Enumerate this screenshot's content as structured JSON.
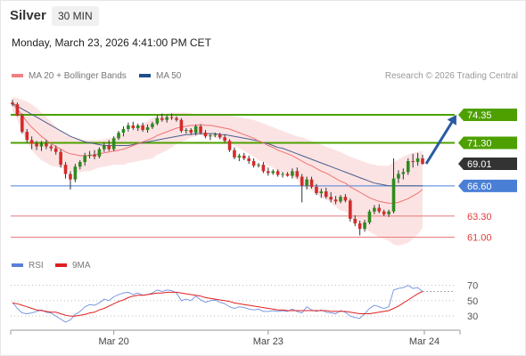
{
  "header": {
    "title": "Silver",
    "interval": "30 MIN",
    "datetime": "Monday, March 23, 2026 4:41:00 PM CET",
    "copyright": "Research © 2026 Trading Central"
  },
  "legend": {
    "items": [
      {
        "label": "MA 20 + Bollinger Bands",
        "color": "#f08080"
      },
      {
        "label": "MA 50",
        "color": "#1f4e8c"
      }
    ]
  },
  "rsi_legend": {
    "items": [
      {
        "label": "RSI",
        "color": "#5b7fd6"
      },
      {
        "label": "9MA",
        "color": "#e02020"
      }
    ]
  },
  "chart_data": [
    {
      "type": "candlestick",
      "x_axis": {
        "ticks": [
          "Mar 20",
          "Mar 23",
          "Mar 24"
        ]
      },
      "y_range": [
        59.2,
        76.2
      ],
      "levels": [
        {
          "value": 74.35,
          "label": "74.35",
          "kind": "resistance",
          "color": "#4da000"
        },
        {
          "value": 71.3,
          "label": "71.30",
          "kind": "resistance",
          "color": "#4da000"
        },
        {
          "value": 69.01,
          "label": "69.01",
          "kind": "last-price",
          "color": "#333333"
        },
        {
          "value": 66.6,
          "label": "66.60",
          "kind": "pivot",
          "color": "#4a7fd6"
        },
        {
          "value": 63.3,
          "label": "63.30",
          "kind": "support",
          "color": "#e87a7a"
        },
        {
          "value": 61.0,
          "label": "61.00",
          "kind": "support",
          "color": "#e87a7a"
        }
      ],
      "target_arrow": {
        "from": 69.01,
        "to": 74.35,
        "color": "#2a5aa0"
      },
      "ohlc": [
        [
          75.7,
          76.0,
          75.3,
          75.5
        ],
        [
          75.5,
          75.7,
          74.2,
          74.3
        ],
        [
          74.3,
          74.5,
          72.3,
          72.5
        ],
        [
          72.5,
          72.8,
          71.3,
          71.6
        ],
        [
          71.6,
          72.0,
          70.6,
          71.2
        ],
        [
          71.2,
          71.5,
          70.5,
          70.9
        ],
        [
          70.9,
          71.5,
          70.4,
          71.2
        ],
        [
          71.2,
          71.6,
          70.6,
          70.9
        ],
        [
          70.9,
          71.1,
          70.4,
          70.7
        ],
        [
          70.7,
          71.0,
          70.0,
          70.3
        ],
        [
          70.3,
          70.6,
          68.6,
          68.9
        ],
        [
          68.9,
          69.2,
          67.4,
          67.9
        ],
        [
          67.9,
          68.2,
          66.2,
          67.3
        ],
        [
          67.3,
          69.0,
          67.0,
          68.7
        ],
        [
          68.7,
          69.4,
          68.4,
          69.2
        ],
        [
          69.2,
          70.2,
          68.8,
          69.9
        ],
        [
          69.9,
          70.4,
          69.6,
          70.0
        ],
        [
          70.0,
          70.5,
          69.5,
          69.8
        ],
        [
          69.8,
          70.8,
          69.6,
          70.6
        ],
        [
          70.6,
          71.3,
          70.3,
          71.0
        ],
        [
          71.0,
          71.6,
          70.4,
          70.6
        ],
        [
          70.6,
          72.0,
          70.4,
          71.8
        ],
        [
          71.8,
          72.6,
          71.6,
          72.4
        ],
        [
          72.4,
          73.1,
          72.0,
          72.8
        ],
        [
          72.8,
          73.5,
          72.5,
          73.2
        ],
        [
          73.2,
          73.6,
          72.7,
          72.9
        ],
        [
          72.9,
          73.4,
          72.6,
          73.2
        ],
        [
          73.2,
          73.5,
          72.5,
          72.7
        ],
        [
          72.7,
          73.3,
          72.4,
          73.0
        ],
        [
          73.0,
          73.6,
          72.8,
          73.4
        ],
        [
          73.4,
          74.3,
          73.2,
          74.0
        ],
        [
          74.0,
          74.5,
          73.6,
          73.8
        ],
        [
          73.8,
          74.3,
          73.5,
          74.1
        ],
        [
          74.1,
          74.5,
          73.8,
          74.0
        ],
        [
          74.0,
          74.2,
          73.6,
          73.8
        ],
        [
          73.8,
          74.0,
          72.4,
          72.6
        ],
        [
          72.6,
          72.9,
          72.3,
          72.7
        ],
        [
          72.7,
          72.9,
          72.2,
          72.4
        ],
        [
          72.4,
          73.3,
          72.1,
          73.1
        ],
        [
          73.1,
          73.3,
          72.2,
          72.4
        ],
        [
          72.4,
          72.7,
          71.8,
          72.0
        ],
        [
          72.0,
          72.3,
          71.6,
          72.1
        ],
        [
          72.1,
          72.4,
          71.9,
          72.2
        ],
        [
          72.2,
          72.4,
          71.7,
          71.9
        ],
        [
          71.9,
          72.2,
          71.3,
          71.5
        ],
        [
          71.5,
          71.7,
          70.3,
          70.5
        ],
        [
          70.5,
          70.8,
          69.5,
          69.7
        ],
        [
          69.7,
          70.1,
          69.3,
          69.9
        ],
        [
          69.9,
          70.2,
          69.4,
          69.6
        ],
        [
          69.6,
          69.9,
          69.0,
          69.3
        ],
        [
          69.3,
          69.6,
          68.6,
          68.8
        ],
        [
          68.8,
          69.1,
          68.6,
          68.9
        ],
        [
          68.9,
          69.2,
          68.0,
          68.2
        ],
        [
          68.2,
          68.6,
          67.7,
          68.0
        ],
        [
          68.0,
          68.4,
          67.8,
          68.2
        ],
        [
          68.2,
          68.4,
          67.6,
          67.8
        ],
        [
          67.8,
          68.1,
          67.5,
          67.9
        ],
        [
          67.9,
          68.1,
          67.6,
          67.7
        ],
        [
          67.7,
          68.5,
          67.4,
          68.2
        ],
        [
          68.2,
          68.6,
          67.4,
          67.6
        ],
        [
          67.6,
          67.9,
          64.8,
          66.6
        ],
        [
          66.6,
          67.6,
          66.2,
          67.3
        ],
        [
          67.3,
          67.6,
          66.3,
          66.5
        ],
        [
          66.5,
          66.8,
          65.6,
          65.8
        ],
        [
          65.8,
          66.3,
          65.3,
          66.0
        ],
        [
          66.0,
          66.4,
          65.2,
          65.4
        ],
        [
          65.4,
          65.9,
          64.8,
          65.1
        ],
        [
          65.1,
          65.5,
          64.6,
          64.9
        ],
        [
          64.9,
          65.6,
          64.7,
          65.4
        ],
        [
          65.4,
          65.7,
          64.8,
          65.0
        ],
        [
          65.0,
          65.2,
          62.7,
          63.0
        ],
        [
          63.0,
          63.4,
          62.2,
          62.5
        ],
        [
          62.5,
          62.8,
          61.2,
          61.9
        ],
        [
          61.9,
          62.9,
          61.6,
          62.6
        ],
        [
          62.6,
          64.0,
          62.4,
          63.8
        ],
        [
          63.8,
          64.5,
          63.5,
          64.2
        ],
        [
          64.2,
          64.6,
          63.6,
          63.8
        ],
        [
          63.8,
          64.0,
          63.3,
          63.5
        ],
        [
          63.5,
          64.0,
          63.2,
          63.8
        ],
        [
          63.8,
          69.6,
          63.6,
          67.4
        ],
        [
          67.4,
          68.3,
          66.9,
          67.9
        ],
        [
          67.9,
          68.5,
          67.3,
          68.1
        ],
        [
          68.1,
          69.6,
          67.8,
          69.3
        ],
        [
          69.3,
          70.1,
          68.6,
          69.2
        ],
        [
          69.2,
          70.2,
          68.8,
          69.6
        ],
        [
          69.6,
          70.0,
          68.9,
          69.01
        ]
      ],
      "ma20": [
        75.5,
        75.0,
        74.3,
        73.6,
        73.0,
        72.5,
        72.0,
        71.6,
        71.2,
        70.9,
        70.6,
        70.3,
        70.1,
        70.0,
        69.9,
        69.9,
        69.9,
        70.0,
        70.1,
        70.2,
        70.3,
        70.4,
        70.5,
        70.6,
        70.8,
        71.0,
        71.2,
        71.4,
        71.6,
        71.8,
        72.1,
        72.3,
        72.5,
        72.7,
        72.9,
        73.0,
        73.1,
        73.2,
        73.2,
        73.3,
        73.2,
        73.2,
        73.1,
        73.0,
        72.9,
        72.8,
        72.6,
        72.4,
        72.2,
        72.0,
        71.8,
        71.5,
        71.3,
        71.0,
        70.8,
        70.5,
        70.3,
        70.1,
        69.9,
        69.6,
        69.3,
        69.0,
        68.8,
        68.5,
        68.2,
        68.0,
        67.7,
        67.4,
        67.1,
        66.9,
        66.5,
        66.2,
        65.9,
        65.6,
        65.3,
        65.1,
        64.9,
        64.8,
        64.7,
        64.7,
        64.8,
        65.0,
        65.2,
        65.5,
        65.8,
        66.2
      ],
      "bb_upper": [
        76.3,
        76.2,
        76.0,
        75.8,
        75.5,
        75.1,
        74.6,
        74.1,
        73.6,
        73.1,
        72.6,
        72.2,
        72.0,
        71.9,
        71.7,
        71.6,
        71.6,
        71.6,
        71.6,
        71.7,
        71.8,
        71.9,
        72.1,
        72.3,
        72.5,
        72.8,
        73.1,
        73.4,
        73.7,
        74.0,
        74.2,
        74.4,
        74.5,
        74.6,
        74.6,
        74.6,
        74.6,
        74.5,
        74.4,
        74.4,
        74.4,
        74.4,
        74.3,
        74.3,
        74.3,
        74.3,
        74.2,
        74.1,
        74.0,
        73.9,
        73.8,
        73.6,
        73.4,
        73.2,
        73.0,
        72.8,
        72.6,
        72.4,
        72.2,
        72.0,
        71.9,
        71.7,
        71.5,
        71.3,
        71.1,
        70.9,
        70.7,
        70.5,
        70.3,
        70.0,
        69.8,
        69.6,
        69.4,
        69.2,
        69.0,
        68.9,
        68.8,
        68.8,
        68.8,
        69.2,
        69.5,
        69.8,
        70.0,
        70.2,
        70.3,
        70.4
      ],
      "bb_lower": [
        74.7,
        73.8,
        72.6,
        71.4,
        70.5,
        69.9,
        69.4,
        69.1,
        68.8,
        68.7,
        68.6,
        68.4,
        68.2,
        68.1,
        68.1,
        68.2,
        68.2,
        68.4,
        68.6,
        68.7,
        68.8,
        68.9,
        68.9,
        68.9,
        69.1,
        69.2,
        69.3,
        69.4,
        69.5,
        69.6,
        70.0,
        70.2,
        70.5,
        70.8,
        71.2,
        71.4,
        71.6,
        71.9,
        72.0,
        72.2,
        72.0,
        72.0,
        71.9,
        71.7,
        71.5,
        71.3,
        71.0,
        70.7,
        70.4,
        70.1,
        69.8,
        69.4,
        69.2,
        68.8,
        68.6,
        68.2,
        68.0,
        67.8,
        67.6,
        67.2,
        66.7,
        66.3,
        66.1,
        65.7,
        65.3,
        65.1,
        64.7,
        64.3,
        63.9,
        63.8,
        63.2,
        62.8,
        62.4,
        62.0,
        61.6,
        61.3,
        61.0,
        60.8,
        60.6,
        60.2,
        60.1,
        60.2,
        60.4,
        60.8,
        61.3,
        62.0
      ],
      "ma50": [
        75.6,
        75.3,
        75.0,
        74.7,
        74.4,
        74.1,
        73.8,
        73.5,
        73.2,
        72.9,
        72.6,
        72.3,
        72.0,
        71.8,
        71.6,
        71.4,
        71.3,
        71.2,
        71.1,
        71.0,
        71.0,
        71.0,
        71.0,
        71.0,
        71.0,
        71.1,
        71.2,
        71.3,
        71.4,
        71.5,
        71.6,
        71.7,
        71.8,
        71.9,
        72.0,
        72.1,
        72.2,
        72.2,
        72.3,
        72.3,
        72.3,
        72.3,
        72.3,
        72.2,
        72.2,
        72.1,
        72.0,
        71.9,
        71.8,
        71.7,
        71.6,
        71.5,
        71.3,
        71.2,
        71.0,
        70.8,
        70.7,
        70.5,
        70.3,
        70.1,
        69.9,
        69.7,
        69.5,
        69.3,
        69.1,
        68.9,
        68.7,
        68.5,
        68.3,
        68.1,
        67.9,
        67.7,
        67.5,
        67.3,
        67.1,
        66.9,
        66.8,
        66.7,
        66.6,
        66.6,
        66.6,
        66.6,
        66.6,
        66.6,
        66.6,
        66.6
      ]
    },
    {
      "type": "line",
      "name": "RSI",
      "y_range": [
        15,
        80
      ],
      "y_ticks": [
        70,
        50,
        30
      ],
      "rsi": [
        48,
        40,
        34,
        33,
        34,
        36,
        38,
        35,
        34,
        30,
        26,
        22,
        25,
        32,
        36,
        42,
        45,
        44,
        47,
        52,
        50,
        55,
        58,
        60,
        61,
        58,
        60,
        57,
        58,
        60,
        64,
        62,
        64,
        63,
        60,
        50,
        52,
        50,
        56,
        51,
        48,
        50,
        51,
        48,
        46,
        42,
        40,
        42,
        41,
        39,
        38,
        39,
        36,
        36,
        37,
        36,
        37,
        36,
        39,
        36,
        34,
        42,
        38,
        36,
        38,
        35,
        34,
        33,
        37,
        35,
        30,
        28,
        27,
        33,
        40,
        44,
        42,
        40,
        42,
        64,
        66,
        67,
        70,
        66,
        67,
        62
      ],
      "rsi_ma": [
        47,
        46,
        44,
        42,
        40,
        38,
        37,
        36,
        35,
        35,
        33,
        31,
        30,
        30,
        31,
        32,
        34,
        35,
        38,
        40,
        43,
        46,
        49,
        51,
        54,
        56,
        57,
        57,
        58,
        59,
        60,
        60,
        61,
        61,
        61,
        60,
        59,
        58,
        57,
        56,
        54,
        53,
        52,
        51,
        50,
        49,
        47,
        46,
        45,
        44,
        43,
        42,
        41,
        40,
        39,
        38,
        38,
        37,
        37,
        37,
        37,
        37,
        37,
        37,
        37,
        37,
        36,
        36,
        36,
        36,
        35,
        34,
        33,
        33,
        33,
        34,
        35,
        36,
        37,
        40,
        43,
        47,
        51,
        55,
        59,
        62
      ]
    }
  ]
}
